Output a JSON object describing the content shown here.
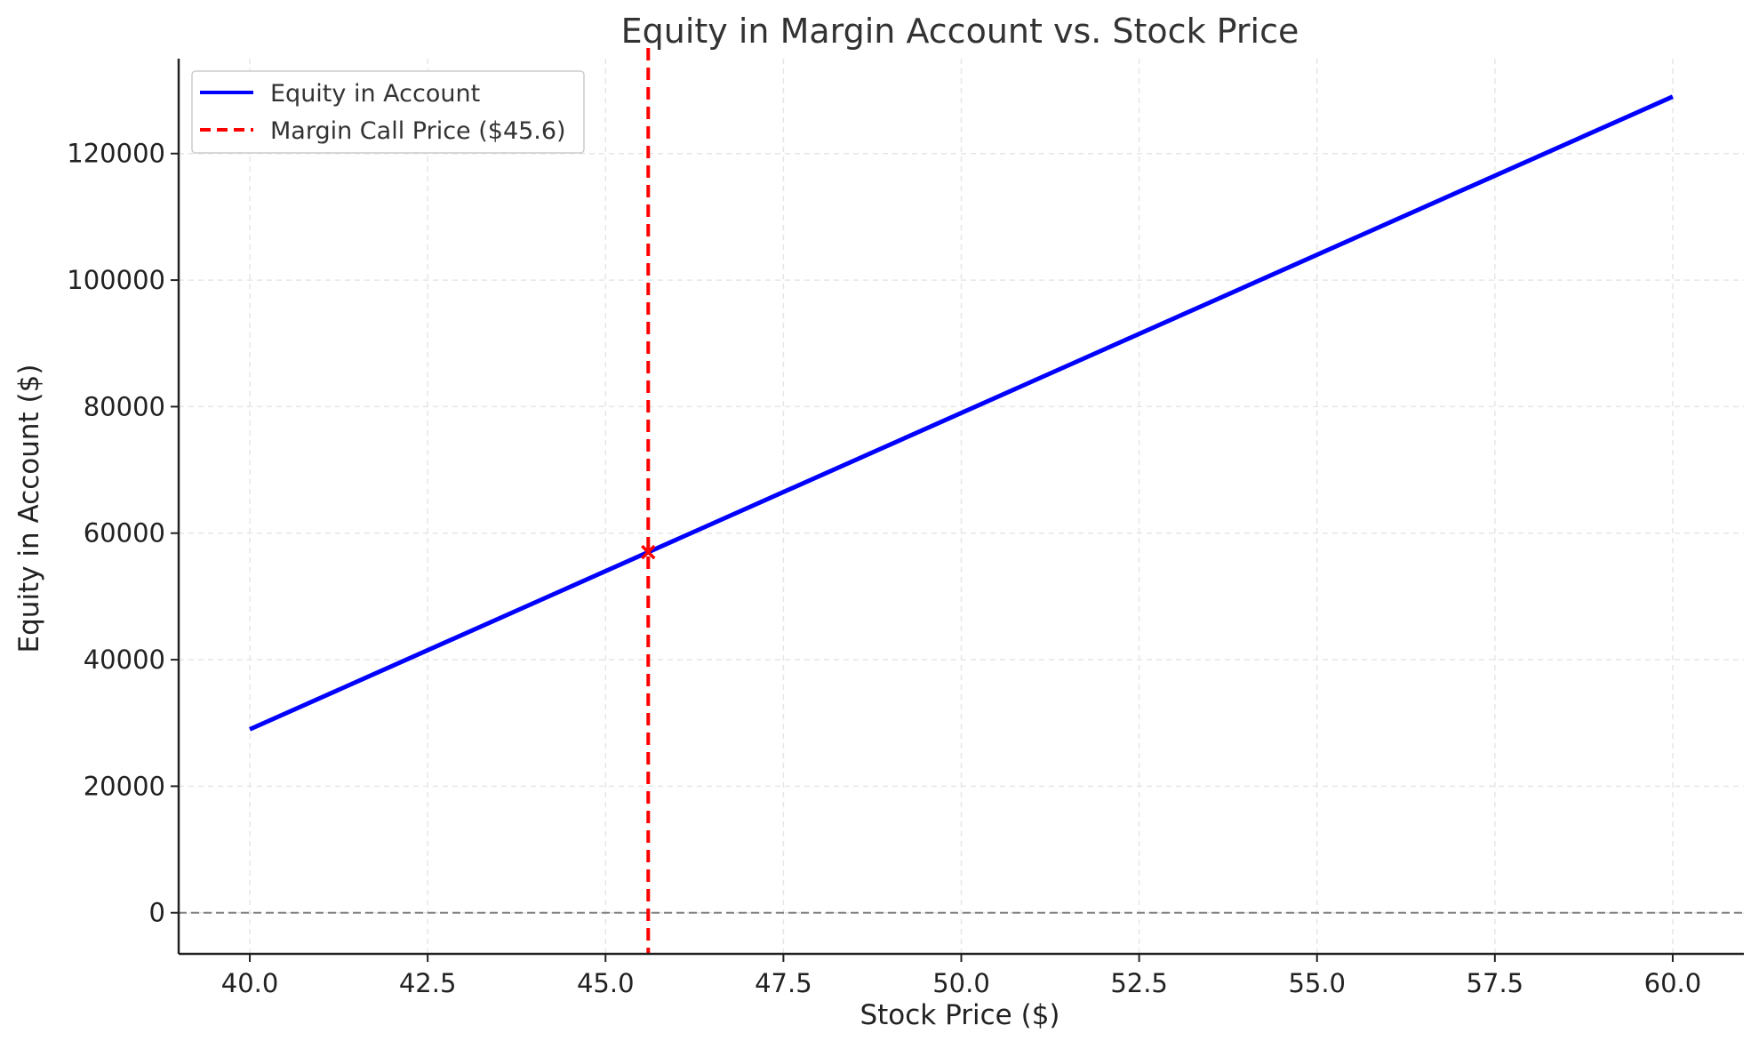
{
  "chart_data": {
    "type": "line",
    "title": "Equity in Margin Account vs. Stock Price",
    "xlabel": "Stock Price ($)",
    "ylabel": "Equity in Account ($)",
    "xlim": [
      39.0,
      61.0
    ],
    "ylim": [
      -6500,
      135000
    ],
    "x_ticks": [
      "40.0",
      "42.5",
      "45.0",
      "47.5",
      "50.0",
      "52.5",
      "55.0",
      "57.5",
      "60.0"
    ],
    "y_ticks": [
      "0",
      "20000",
      "40000",
      "60000",
      "80000",
      "100000",
      "120000"
    ],
    "grid": true,
    "legend_position": "top-left",
    "series": [
      {
        "name": "Equity in Account",
        "color": "#0000ff",
        "style": "solid",
        "x": [
          40.0,
          60.0
        ],
        "y": [
          29000,
          129000
        ]
      }
    ],
    "vertical_line": {
      "name": "Margin Call Price ($45.6)",
      "x": 45.6,
      "color": "#ff0000",
      "style": "dashed"
    },
    "marker": {
      "x": 45.6,
      "y": 57000,
      "symbol": "x",
      "color": "#ff0000"
    },
    "zero_line": {
      "y": 0,
      "color": "#808080",
      "style": "dashed"
    }
  }
}
